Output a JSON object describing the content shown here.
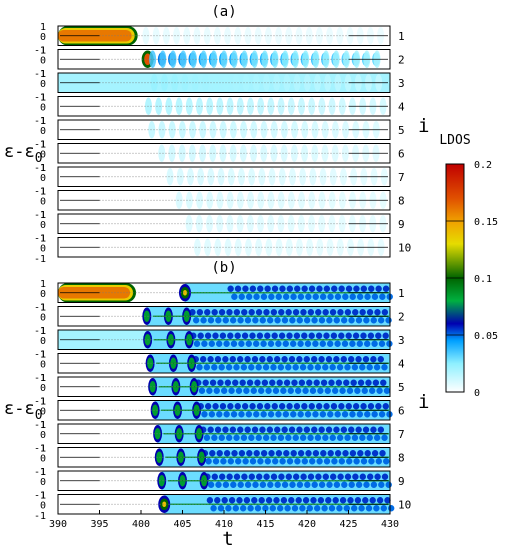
{
  "chart_data": [
    {
      "type": "heatmap",
      "panel_label": "(a)",
      "xlim": [
        390,
        430
      ],
      "y_ticks": [
        "1",
        "0",
        "-1"
      ],
      "row_labels": [
        "1",
        "2",
        "3",
        "4",
        "5",
        "6",
        "7",
        "8",
        "9",
        "10"
      ],
      "ylabel": "ε-ε",
      "ylabel_sub": "0",
      "right_label": "i",
      "rows": [
        {
          "i": 1,
          "bright_until_t": 399.6,
          "wave_front_t": 400.6,
          "intensity": 0.06
        },
        {
          "i": 2,
          "peak_t": 400.8,
          "wave_front_t": 401.4,
          "intensity": 0.9
        },
        {
          "i": 3,
          "base_light": true,
          "wave_front_t": 401.6,
          "intensity": 0.55
        },
        {
          "i": 4,
          "wave_front_t": 400.9,
          "intensity": 0.45
        },
        {
          "i": 5,
          "wave_front_t": 401.3,
          "intensity": 0.3
        },
        {
          "i": 6,
          "wave_front_t": 402.5,
          "intensity": 0.22
        },
        {
          "i": 7,
          "wave_front_t": 403.5,
          "intensity": 0.17
        },
        {
          "i": 8,
          "wave_front_t": 404.6,
          "intensity": 0.15
        },
        {
          "i": 9,
          "wave_front_t": 405.8,
          "intensity": 0.13
        },
        {
          "i": 10,
          "wave_front_t": 406.8,
          "intensity": 0.12
        }
      ]
    },
    {
      "type": "heatmap",
      "panel_label": "(b)",
      "xlim": [
        390,
        430
      ],
      "x_ticks": [
        "390",
        "395",
        "400",
        "405",
        "410",
        "415",
        "420",
        "425",
        "430"
      ],
      "xlabel": "t",
      "y_ticks": [
        "1",
        "0",
        "-1"
      ],
      "row_labels": [
        "1",
        "2",
        "3",
        "4",
        "5",
        "6",
        "7",
        "8",
        "9",
        "10"
      ],
      "ylabel": "ε-ε",
      "ylabel_sub": "0",
      "right_label": "i",
      "rows": [
        {
          "i": 1,
          "bright_until_t": 399.4,
          "blobs_t": [
            405.3
          ],
          "intensity": 1.0
        },
        {
          "i": 2,
          "blobs_t": [
            400.7,
            403.3,
            405.5
          ],
          "intensity": 0.75
        },
        {
          "i": 3,
          "base_light": true,
          "blobs_t": [
            400.8,
            403.6,
            405.8
          ],
          "intensity": 0.75
        },
        {
          "i": 4,
          "blobs_t": [
            401.1,
            403.9,
            406.1
          ],
          "intensity": 0.75
        },
        {
          "i": 5,
          "blobs_t": [
            401.4,
            404.2,
            406.4
          ],
          "intensity": 0.75
        },
        {
          "i": 6,
          "blobs_t": [
            401.7,
            404.4,
            406.7
          ],
          "intensity": 0.8
        },
        {
          "i": 7,
          "blobs_t": [
            402.0,
            404.6,
            407.0
          ],
          "intensity": 0.85
        },
        {
          "i": 8,
          "blobs_t": [
            402.2,
            404.8,
            407.3
          ],
          "intensity": 0.85
        },
        {
          "i": 9,
          "blobs_t": [
            402.5,
            405.0,
            407.6
          ],
          "intensity": 0.85
        },
        {
          "i": 10,
          "blobs_t": [
            402.8
          ],
          "intensity": 0.9
        }
      ]
    }
  ],
  "colorbar": {
    "title": "LDOS",
    "range": [
      0,
      0.2
    ],
    "ticks": [
      "0.2",
      "0.15",
      "0.1",
      "0.05",
      "0"
    ],
    "stops": [
      {
        "v": 0.0,
        "color": "#ffffff"
      },
      {
        "v": 0.025,
        "color": "#8ef0ff"
      },
      {
        "v": 0.045,
        "color": "#00a0ff"
      },
      {
        "v": 0.06,
        "color": "#0000b0"
      },
      {
        "v": 0.08,
        "color": "#00b040"
      },
      {
        "v": 0.1,
        "color": "#006400"
      },
      {
        "v": 0.13,
        "color": "#e6dc00"
      },
      {
        "v": 0.15,
        "color": "#f0a000"
      },
      {
        "v": 0.17,
        "color": "#e05000"
      },
      {
        "v": 0.2,
        "color": "#c00000"
      }
    ]
  }
}
